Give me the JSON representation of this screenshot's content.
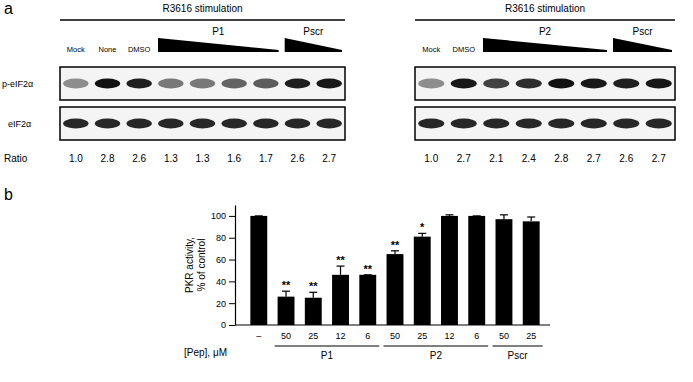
{
  "panel_a": {
    "label": "a",
    "row_labels": [
      "p-eIF2α",
      "eIF2α"
    ],
    "ratio_label": "Ratio",
    "blots": [
      {
        "header": "R3616 stimulation",
        "lane_groups": [
          {
            "text": "Mock",
            "lanes": 1
          },
          {
            "text": "None",
            "lanes": 1
          },
          {
            "text": "DMSO",
            "lanes": 1
          },
          {
            "text": "P1",
            "lanes": 4
          },
          {
            "text": "Pscr",
            "lanes": 2
          }
        ],
        "ratios": [
          1.0,
          2.8,
          2.6,
          1.3,
          1.3,
          1.6,
          1.7,
          2.6,
          2.7
        ],
        "ratio_labels": [
          "1.0",
          "2.8",
          "2.6",
          "1.3",
          "1.3",
          "1.6",
          "1.7",
          "2.6",
          "2.7"
        ]
      },
      {
        "header": "R3616 stimulation",
        "lane_groups": [
          {
            "text": "Mock",
            "lanes": 1
          },
          {
            "text": "DMSO",
            "lanes": 1
          },
          {
            "text": "P2",
            "lanes": 4
          },
          {
            "text": "Pscr",
            "lanes": 2
          }
        ],
        "ratios": [
          1.0,
          2.7,
          2.1,
          2.4,
          2.8,
          2.7,
          2.6,
          2.7
        ],
        "ratio_labels": [
          "1.0",
          "2.7",
          "2.1",
          "2.4",
          "2.8",
          "2.7",
          "2.6",
          "2.7"
        ]
      }
    ]
  },
  "chart_data": {
    "type": "bar",
    "label": "b",
    "y_label": [
      "PKR activity,",
      "% of control"
    ],
    "x_label": "[Pep], μM",
    "categories": [
      "–",
      "50",
      "25",
      "12",
      "6",
      "50",
      "25",
      "12",
      "6",
      "50",
      "25"
    ],
    "values": [
      100,
      26,
      25,
      46,
      46,
      65,
      81,
      100,
      100,
      97,
      95
    ],
    "errors": [
      0,
      5,
      5,
      8,
      0,
      3,
      3,
      1,
      0,
      4,
      4
    ],
    "significance": [
      null,
      "**",
      "**",
      "**",
      "**",
      "**",
      "*",
      null,
      null,
      null,
      null
    ],
    "groups": [
      {
        "label": "P1",
        "categories": [
          1,
          2,
          3,
          4
        ]
      },
      {
        "label": "P2",
        "categories": [
          5,
          6,
          7,
          8
        ]
      },
      {
        "label": "Pscr",
        "categories": [
          9,
          10
        ]
      }
    ],
    "color": "#000000",
    "ylim": [
      0,
      110
    ],
    "yticks": [
      0,
      20,
      40,
      60,
      80,
      100
    ]
  }
}
